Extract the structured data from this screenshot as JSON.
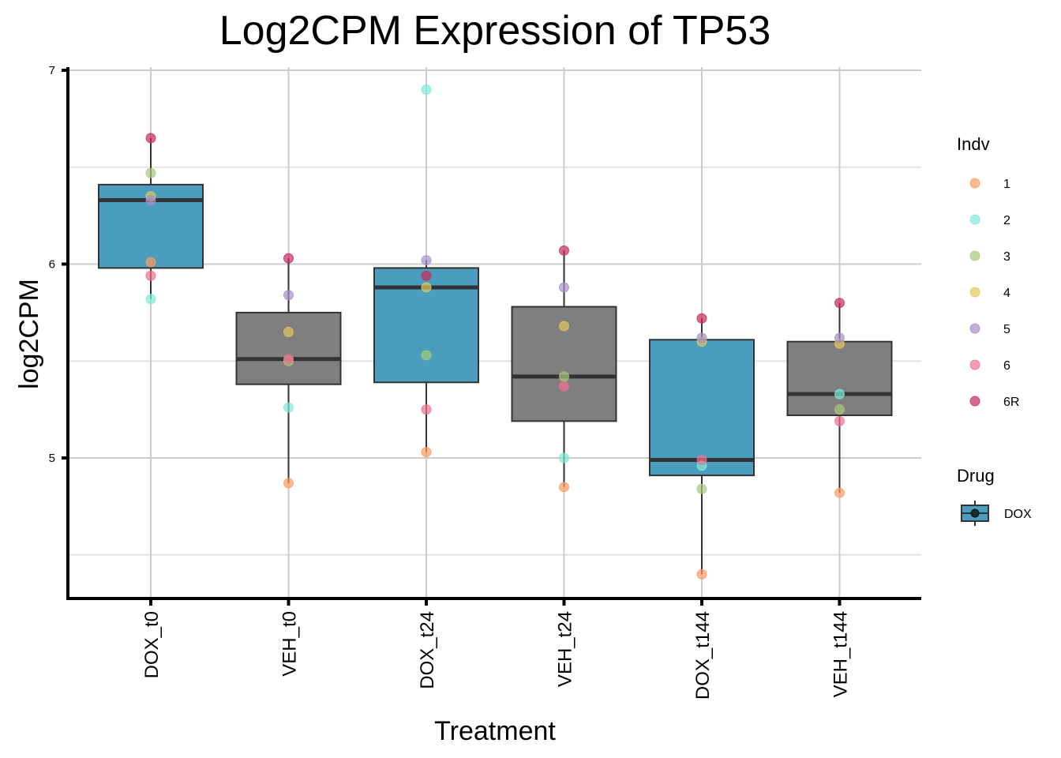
{
  "chart_data": {
    "type": "box",
    "title": "Log2CPM Expression of TP53",
    "xlabel": "Treatment",
    "ylabel": "log2CPM",
    "ylim": [
      4.28,
      7.0
    ],
    "yticks": [
      5,
      6,
      7
    ],
    "y_minor_grid": [
      4.5,
      5.5,
      6.5
    ],
    "grid": true,
    "categories": [
      "DOX_t0",
      "VEH_t0",
      "DOX_t24",
      "VEH_t24",
      "DOX_t144",
      "VEH_t144"
    ],
    "category_drug": [
      "DOX",
      "VEH",
      "DOX",
      "VEH",
      "DOX",
      "VEH"
    ],
    "drug_colors": {
      "DOX": "#4a9dbd",
      "VEH": "#7f7f7f"
    },
    "boxes": [
      {
        "category": "DOX_t0",
        "lower_whisker": 5.82,
        "q1": 5.98,
        "median": 6.33,
        "q3": 6.41,
        "upper_whisker": 6.65,
        "outliers": []
      },
      {
        "category": "VEH_t0",
        "lower_whisker": 4.87,
        "q1": 5.38,
        "median": 5.51,
        "q3": 5.75,
        "upper_whisker": 6.03,
        "outliers": []
      },
      {
        "category": "DOX_t24",
        "lower_whisker": 5.03,
        "q1": 5.39,
        "median": 5.88,
        "q3": 5.98,
        "upper_whisker": 6.02,
        "outliers": [
          6.9
        ]
      },
      {
        "category": "VEH_t24",
        "lower_whisker": 4.85,
        "q1": 5.19,
        "median": 5.42,
        "q3": 5.78,
        "upper_whisker": 6.07,
        "outliers": []
      },
      {
        "category": "DOX_t144",
        "lower_whisker": 4.4,
        "q1": 4.91,
        "median": 4.99,
        "q3": 5.61,
        "upper_whisker": 5.72,
        "outliers": []
      },
      {
        "category": "VEH_t144",
        "lower_whisker": 4.82,
        "q1": 5.22,
        "median": 5.33,
        "q3": 5.6,
        "upper_whisker": 5.8,
        "outliers": []
      }
    ],
    "series": [
      {
        "name": "1",
        "color": "#ff9a5e",
        "values": [
          6.01,
          4.87,
          5.03,
          4.85,
          4.4,
          4.82
        ]
      },
      {
        "name": "2",
        "color": "#7ee8db",
        "values": [
          5.82,
          5.26,
          6.9,
          5.0,
          4.96,
          5.33
        ]
      },
      {
        "name": "3",
        "color": "#a8c97a",
        "values": [
          6.47,
          5.5,
          5.53,
          5.42,
          4.84,
          5.25
        ]
      },
      {
        "name": "4",
        "color": "#e3c85a",
        "values": [
          6.35,
          5.65,
          5.88,
          5.68,
          5.6,
          5.59
        ]
      },
      {
        "name": "5",
        "color": "#a790c8",
        "values": [
          6.33,
          5.84,
          6.02,
          5.88,
          5.62,
          5.62
        ]
      },
      {
        "name": "6",
        "color": "#f06f90",
        "values": [
          5.94,
          5.51,
          5.25,
          5.37,
          4.99,
          5.19
        ]
      },
      {
        "name": "6R",
        "color": "#c82a5a",
        "values": [
          6.65,
          6.03,
          5.94,
          6.07,
          5.72,
          5.8
        ]
      }
    ],
    "legend": {
      "position": "right",
      "indv_title": "Indv",
      "drug_title": "Drug",
      "drug_items": [
        "DOX"
      ]
    }
  }
}
